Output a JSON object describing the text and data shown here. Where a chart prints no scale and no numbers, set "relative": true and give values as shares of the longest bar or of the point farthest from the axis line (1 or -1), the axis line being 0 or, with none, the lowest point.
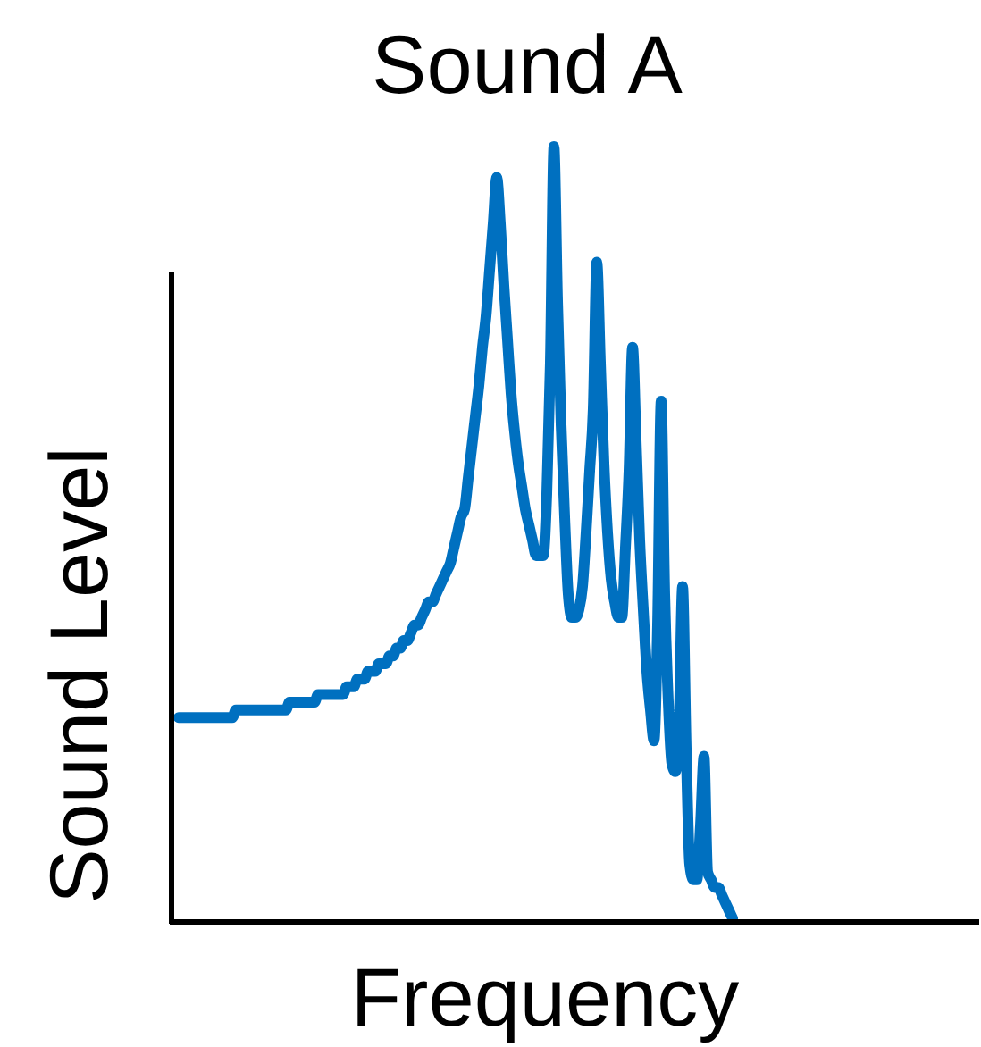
{
  "chart_data": {
    "type": "line",
    "title": "Sound A",
    "xlabel": "Frequency",
    "ylabel": "Sound Level",
    "relative": true,
    "categories": [
      null,
      null,
      null,
      null,
      null,
      null,
      null,
      null,
      null,
      null,
      null,
      null,
      null,
      null,
      null,
      null,
      null,
      null,
      null,
      null,
      null,
      null,
      null,
      null,
      null,
      null,
      null,
      null,
      null,
      null,
      null,
      null,
      null,
      null,
      null,
      null,
      null,
      null,
      null,
      null,
      null,
      null,
      null,
      null,
      null,
      null,
      null,
      null,
      null,
      null,
      null,
      null,
      null,
      null,
      null,
      null,
      null,
      null,
      null,
      null,
      null,
      null,
      null,
      null,
      null,
      null,
      null,
      null,
      null,
      null,
      null,
      null,
      null,
      null,
      null,
      null,
      null,
      null,
      null,
      null,
      null,
      null,
      null,
      null,
      null,
      null,
      null,
      null,
      null,
      null,
      null,
      null,
      null,
      null,
      null,
      null,
      null,
      null,
      null,
      null,
      null,
      null,
      null,
      null,
      null,
      null,
      null,
      null,
      null,
      null,
      null,
      null,
      null,
      null,
      null,
      null,
      null,
      null,
      null,
      null,
      null,
      null,
      null,
      null,
      null,
      null,
      null,
      null,
      null,
      null,
      null,
      null,
      null,
      null,
      null,
      null,
      null,
      null,
      null,
      null,
      null,
      null,
      null,
      null,
      null,
      null,
      null,
      null,
      null,
      null,
      null,
      null,
      null,
      null,
      null,
      null
    ],
    "series": [
      {
        "color": "#0070c0",
        "values": [
          0.26,
          0.26,
          0.26,
          0.26,
          0.26,
          0.26,
          0.26,
          0.26,
          0.26,
          0.26,
          0.26,
          0.26,
          0.26,
          0.26,
          0.26,
          0.26,
          0.27,
          0.27,
          0.27,
          0.27,
          0.27,
          0.27,
          0.27,
          0.27,
          0.27,
          0.27,
          0.27,
          0.27,
          0.27,
          0.27,
          0.27,
          0.28,
          0.28,
          0.28,
          0.28,
          0.28,
          0.28,
          0.28,
          0.28,
          0.29,
          0.29,
          0.29,
          0.29,
          0.29,
          0.29,
          0.29,
          0.29,
          0.3,
          0.3,
          0.3,
          0.31,
          0.31,
          0.31,
          0.32,
          0.32,
          0.32,
          0.33,
          0.33,
          0.33,
          0.34,
          0.34,
          0.35,
          0.35,
          0.36,
          0.36,
          0.37,
          0.38,
          0.38,
          0.39,
          0.4,
          0.41,
          0.41,
          0.42,
          0.43,
          0.44,
          0.45,
          0.46,
          0.48,
          0.5,
          0.52,
          0.53,
          0.57,
          0.61,
          0.65,
          0.69,
          0.74,
          0.78,
          0.84,
          0.9,
          0.96,
          0.9,
          0.82,
          0.75,
          0.68,
          0.63,
          0.59,
          0.56,
          0.53,
          0.51,
          0.49,
          0.47,
          0.47,
          0.47,
          0.55,
          0.72,
          1.0,
          0.8,
          0.64,
          0.52,
          0.42,
          0.39,
          0.39,
          0.4,
          0.43,
          0.5,
          0.58,
          0.66,
          0.85,
          0.72,
          0.59,
          0.5,
          0.44,
          0.41,
          0.39,
          0.39,
          0.48,
          0.58,
          0.74,
          0.62,
          0.49,
          0.4,
          0.32,
          0.27,
          0.23,
          0.38,
          0.67,
          0.42,
          0.28,
          0.2,
          0.19,
          0.25,
          0.43,
          0.22,
          0.07,
          0.05,
          0.05,
          0.12,
          0.21,
          0.06,
          0.05,
          0.04,
          0.04,
          0.03,
          0.02,
          0.01,
          0
        ]
      }
    ]
  }
}
